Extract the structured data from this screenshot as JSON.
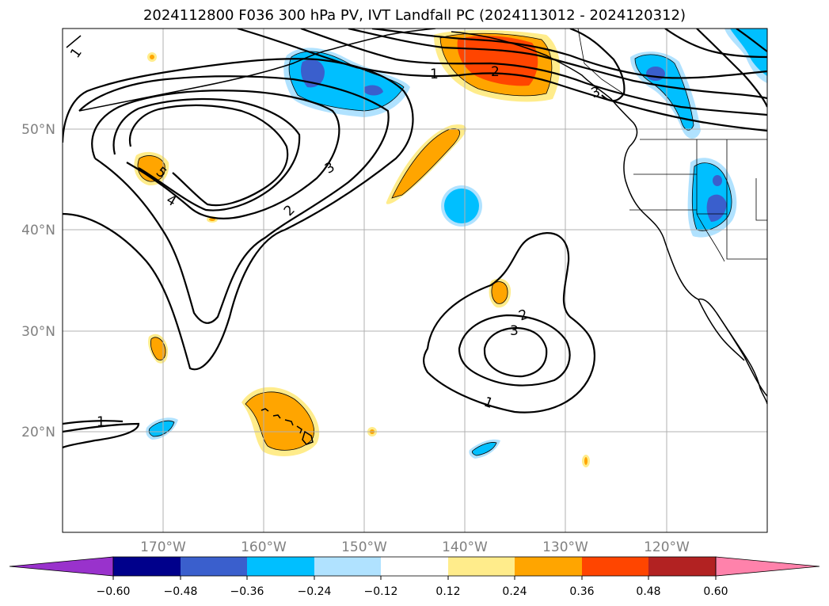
{
  "title": "2024112800 F036 300 hPa PV, IVT Landfall PC (2024113012 - 2024120312)",
  "map": {
    "lon_range": [
      -180,
      -110
    ],
    "lat_range": [
      10,
      60
    ],
    "lon_labels": [
      "170°W",
      "160°W",
      "150°W",
      "140°W",
      "130°W",
      "120°W"
    ],
    "lat_labels": [
      "50°N",
      "40°N",
      "30°N",
      "20°N"
    ],
    "contour_labels": [
      "1",
      "2",
      "3",
      "4",
      "5",
      "1",
      "2",
      "3",
      "1",
      "2",
      "3",
      "1"
    ]
  },
  "colorbar": {
    "ticks": [
      "−0.60",
      "−0.48",
      "−0.36",
      "−0.24",
      "−0.12",
      "0.12",
      "0.24",
      "0.36",
      "0.48",
      "0.60"
    ],
    "colors": [
      "#9932cc",
      "#00008b",
      "#3a5fcd",
      "#00bfff",
      "#b0e2ff",
      "#ffffff",
      "#ffec8b",
      "#ffa500",
      "#ff4500",
      "#b22222",
      "#ff82ab"
    ]
  }
}
